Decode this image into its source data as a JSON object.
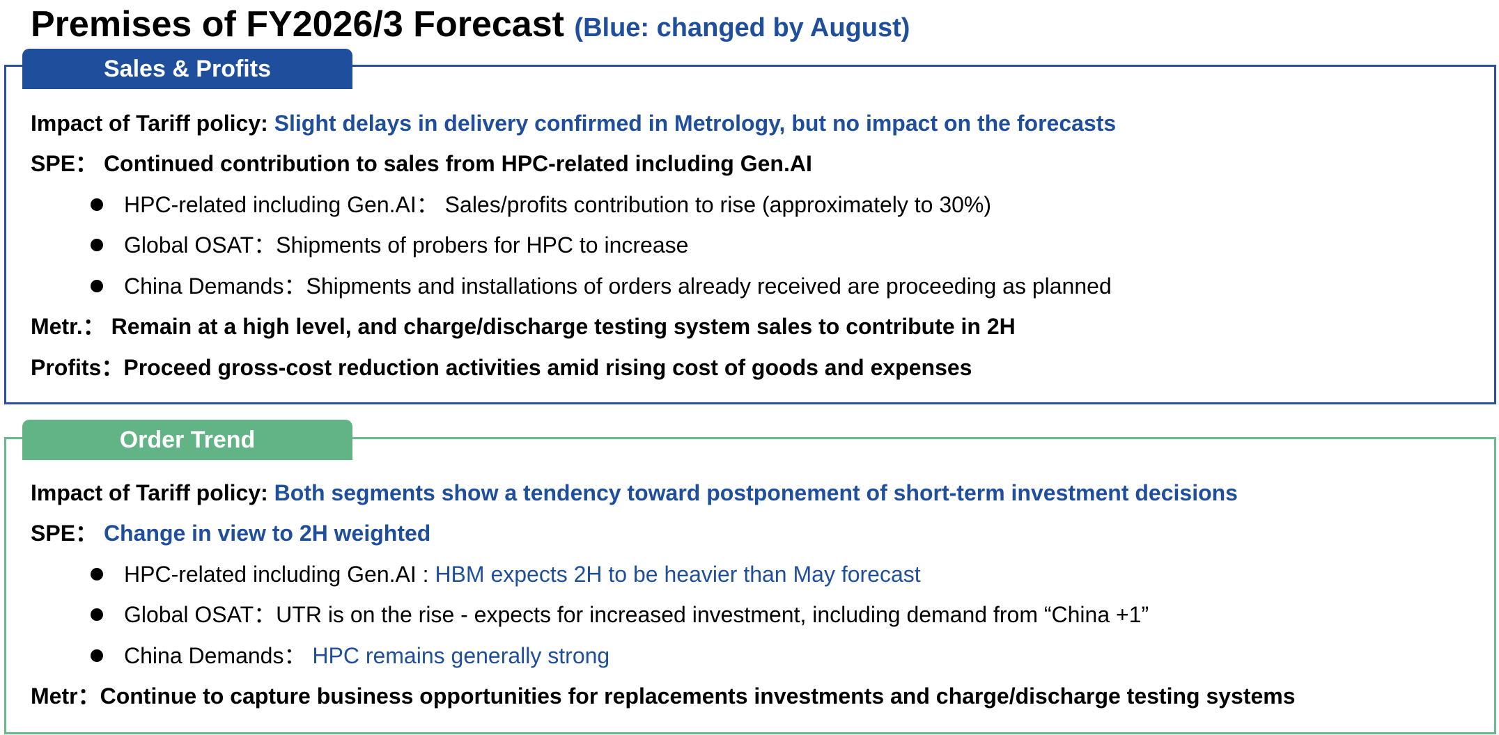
{
  "title": {
    "main": "Premises of FY2026/3 Forecast",
    "note": "(Blue: changed by August)"
  },
  "colors": {
    "accent_blue": "#1f4e9c",
    "accent_green": "#62b487",
    "text": "#000000"
  },
  "sales_profits": {
    "tab_label": "Sales & Profits",
    "tariff": {
      "label": "Impact of Tariff policy: ",
      "value": "Slight delays in delivery confirmed in Metrology, but no impact on the forecasts"
    },
    "spe": {
      "label": "SPE： ",
      "value": "Continued contribution to sales from HPC-related including Gen.AI"
    },
    "bullets": [
      {
        "label": "HPC-related including Gen.AI： ",
        "value": "Sales/profits contribution to rise (approximately to 30%)"
      },
      {
        "label": "Global OSAT：",
        "value": "Shipments of probers for HPC to increase"
      },
      {
        "label": "China Demands：",
        "value": "Shipments and installations of orders already received are proceeding as planned"
      }
    ],
    "metr": {
      "label": "Metr.： ",
      "value": "Remain at a high level, and charge/discharge testing system sales to contribute in 2H"
    },
    "profits": {
      "label": "Profits：",
      "value": "Proceed gross-cost reduction activities amid rising cost of goods and expenses"
    }
  },
  "order_trend": {
    "tab_label": "Order Trend",
    "tariff": {
      "label": "Impact of Tariff policy: ",
      "value": "Both segments show a tendency toward postponement of short-term investment decisions"
    },
    "spe": {
      "label": "SPE： ",
      "value": "Change in view to 2H weighted"
    },
    "bullets": [
      {
        "label": "HPC-related including Gen.AI : ",
        "value": "HBM expects 2H to be heavier than May forecast"
      },
      {
        "label": "Global OSAT：",
        "value": "UTR is on the rise - expects for increased investment, including demand from “China +1”"
      },
      {
        "label": "China Demands： ",
        "value": "HPC remains generally strong"
      }
    ],
    "metr": {
      "label": "Metr：",
      "value": "Continue to capture business opportunities for replacements investments and charge/discharge testing systems"
    }
  }
}
